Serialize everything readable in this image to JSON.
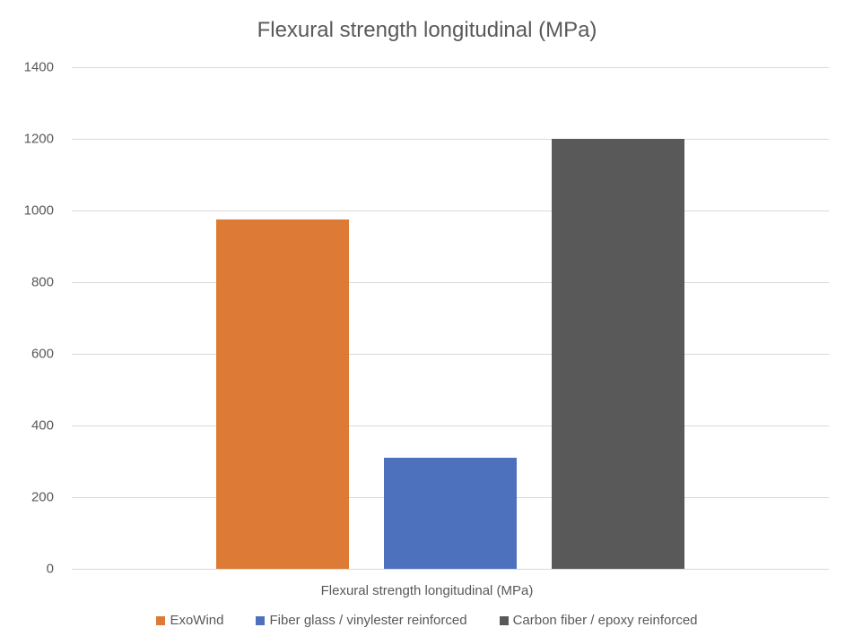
{
  "chart_data": {
    "type": "bar",
    "title": "Flexural strength longitudinal (MPa)",
    "xlabel": "Flexural strength longitudinal (MPa)",
    "ylabel": "",
    "categories": [
      "Flexural strength longitudinal (MPa)"
    ],
    "series": [
      {
        "name": "ExoWind",
        "values": [
          975
        ],
        "color": "#DD7B36"
      },
      {
        "name": "Fiber glass / vinylester reinforced",
        "values": [
          310
        ],
        "color": "#4E71BE"
      },
      {
        "name": "Carbon fiber / epoxy reinforced",
        "values": [
          1200
        ],
        "color": "#595959"
      }
    ],
    "ylim": [
      0,
      1400
    ],
    "yticks": [
      "0",
      "200",
      "400",
      "600",
      "800",
      "1000",
      "1200",
      "1400"
    ],
    "grid": true,
    "legend_position": "bottom"
  }
}
